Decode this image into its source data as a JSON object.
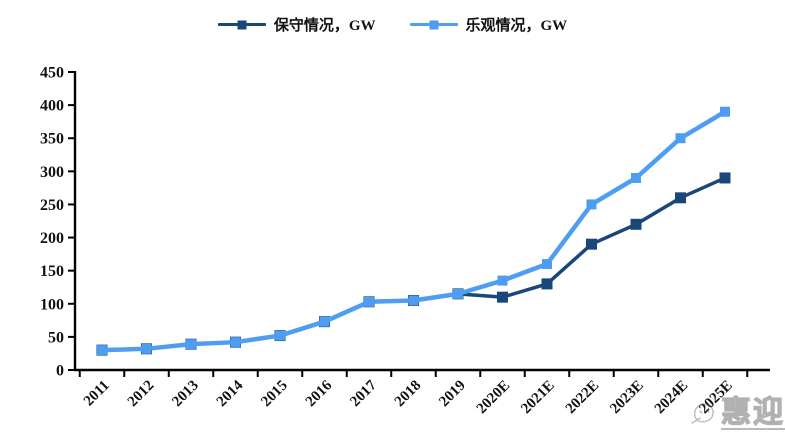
{
  "legend": {
    "items": [
      {
        "label": "保守情况，GW",
        "color": "#1A4779"
      },
      {
        "label": "乐观情况，GW",
        "color": "#4E9DF3"
      }
    ]
  },
  "watermark": {
    "text": "惠迎"
  },
  "chart_data": {
    "type": "line",
    "categories": [
      "2011",
      "2012",
      "2013",
      "2014",
      "2015",
      "2016",
      "2017",
      "2018",
      "2019",
      "2020E",
      "2021E",
      "2022E",
      "2023E",
      "2024E",
      "2025E"
    ],
    "series": [
      {
        "name": "保守情况, GW",
        "color": "#1A4779",
        "values": [
          30,
          32,
          39,
          42,
          52,
          73,
          103,
          105,
          115,
          110,
          130,
          190,
          220,
          260,
          290
        ]
      },
      {
        "name": "乐观情况, GW",
        "color": "#4E9DF3",
        "values": [
          30,
          32,
          39,
          42,
          52,
          73,
          103,
          105,
          115,
          135,
          160,
          250,
          290,
          350,
          390
        ]
      }
    ],
    "title": "",
    "xlabel": "",
    "ylabel": "",
    "ylim": [
      0,
      450
    ],
    "y_ticks": [
      0,
      50,
      100,
      150,
      200,
      250,
      300,
      350,
      400,
      450
    ],
    "grid": false,
    "legend_position": "top",
    "axis_color": "#000000",
    "marker_shape": "square"
  }
}
